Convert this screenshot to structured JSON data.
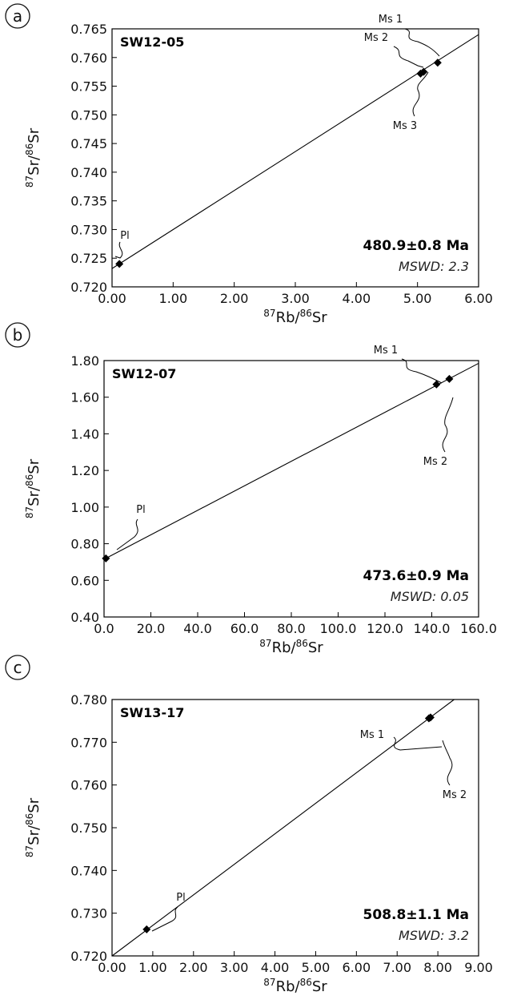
{
  "chart_data": [
    {
      "type": "scatter",
      "panel": "a",
      "sample": "SW12-05",
      "xlabel_iso": "87",
      "xlabel_el": "Rb/",
      "xlabel_iso2": "86",
      "xlabel_el2": "Sr",
      "ylabel_iso": "87",
      "ylabel_el": "Sr/",
      "ylabel_iso2": "86",
      "ylabel_el2": "Sr",
      "xlim": [
        0,
        6
      ],
      "ylim": [
        0.72,
        0.765
      ],
      "xticks": [
        "0.00",
        "1.00",
        "2.00",
        "3.00",
        "4.00",
        "5.00",
        "6.00"
      ],
      "yticks": [
        "0.720",
        "0.725",
        "0.730",
        "0.735",
        "0.740",
        "0.745",
        "0.750",
        "0.755",
        "0.760",
        "0.765"
      ],
      "points": [
        {
          "label": "Pl",
          "x": 0.12,
          "y": 0.724
        },
        {
          "label": "Ms 1",
          "x": 5.33,
          "y": 0.7591
        },
        {
          "label": "Ms 2",
          "x": 5.05,
          "y": 0.7572
        },
        {
          "label": "Ms 3",
          "x": 5.1,
          "y": 0.7575
        }
      ],
      "isochron": {
        "x": [
          0.0,
          6.0
        ],
        "y": [
          0.7232,
          0.764
        ]
      },
      "age": "480.9±0.8 Ma",
      "mswd": "MSWD: 2.3"
    },
    {
      "type": "scatter",
      "panel": "b",
      "sample": "SW12-07",
      "xlabel_iso": "87",
      "xlabel_el": "Rb/",
      "xlabel_iso2": "86",
      "xlabel_el2": "Sr",
      "ylabel_iso": "87",
      "ylabel_el": "Sr/",
      "ylabel_iso2": "86",
      "ylabel_el2": "Sr",
      "xlim": [
        0,
        160
      ],
      "ylim": [
        0.4,
        1.8
      ],
      "xticks": [
        "0.0",
        "20.0",
        "40.0",
        "60.0",
        "80.0",
        "100.0",
        "120.0",
        "140.0",
        "160.0"
      ],
      "yticks": [
        "0.40",
        "0.60",
        "0.80",
        "1.00",
        "1.20",
        "1.40",
        "1.60",
        "1.80"
      ],
      "points": [
        {
          "label": "Pl",
          "x": 0.8,
          "y": 0.72
        },
        {
          "label": "Ms 1",
          "x": 142.0,
          "y": 1.67
        },
        {
          "label": "Ms 2",
          "x": 147.5,
          "y": 1.7
        }
      ],
      "isochron": {
        "x": [
          0.0,
          160.0
        ],
        "y": [
          0.715,
          1.785
        ]
      },
      "age": "473.6±0.9 Ma",
      "mswd": "MSWD: 0.05"
    },
    {
      "type": "scatter",
      "panel": "c",
      "sample": "SW13-17",
      "xlabel_iso": "87",
      "xlabel_el": "Rb/",
      "xlabel_iso2": "86",
      "xlabel_el2": "Sr",
      "ylabel_iso": "87",
      "ylabel_el": "Sr/",
      "ylabel_iso2": "86",
      "ylabel_el2": "Sr",
      "xlim": [
        0,
        9
      ],
      "ylim": [
        0.72,
        0.78
      ],
      "xticks": [
        "0.00",
        "1.00",
        "2.00",
        "3.00",
        "4.00",
        "5.00",
        "6.00",
        "7.00",
        "8.00",
        "9.00"
      ],
      "yticks": [
        "0.720",
        "0.730",
        "0.740",
        "0.750",
        "0.760",
        "0.770",
        "0.780"
      ],
      "points": [
        {
          "label": "Pl",
          "x": 0.85,
          "y": 0.7262
        },
        {
          "label": "Ms 1",
          "x": 7.78,
          "y": 0.7756
        },
        {
          "label": "Ms 2",
          "x": 7.82,
          "y": 0.7758
        }
      ],
      "isochron": {
        "x": [
          0.0,
          8.4
        ],
        "y": [
          0.72,
          0.78
        ]
      },
      "age": "508.8±1.1 Ma",
      "mswd": "MSWD: 3.2"
    }
  ]
}
